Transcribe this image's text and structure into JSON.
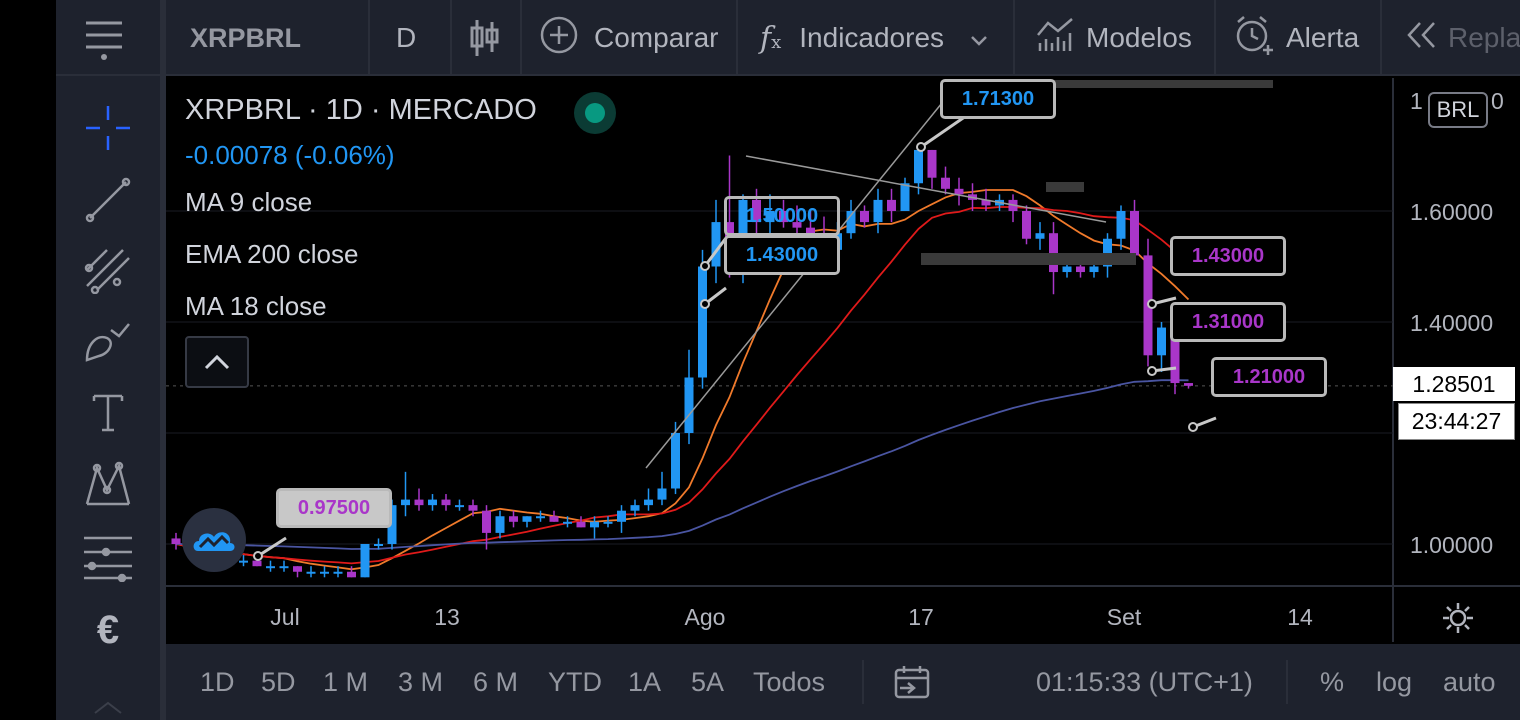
{
  "toolbar": {
    "symbol": "XRPBRL",
    "interval": "D",
    "compare_label": "Comparar",
    "indicators_label": "Indicadores",
    "models_label": "Modelos",
    "alert_label": "Alerta",
    "replay_label": "Repla"
  },
  "sidebar": {
    "tools": [
      "menu-icon",
      "crosshair-icon",
      "trend-line-icon",
      "fib-icon",
      "brush-icon",
      "text-icon",
      "pattern-icon",
      "measure-icon",
      "euro-icon"
    ]
  },
  "legend": {
    "title": "XRPBRL · 1D · MERCADO",
    "change": "-0.00078 (-0.06%)",
    "indicators": [
      "MA 9 close",
      "EMA 200 close",
      "MA 18 close"
    ]
  },
  "price_axis": {
    "currency": "BRL",
    "labels": [
      "1.60000",
      "1.40000",
      "1.00000"
    ],
    "partial_top": "1",
    "partial_top_end": "0",
    "current_price": "1.28501",
    "countdown": "23:44:27"
  },
  "time_axis": {
    "labels": [
      "Jul",
      "13",
      "Ago",
      "17",
      "Set",
      "14"
    ]
  },
  "callouts": [
    "1.71300",
    "1.50000",
    "1.43000",
    "0.97500",
    "1.43000",
    "1.31000",
    "1.21000"
  ],
  "bottombar": {
    "ranges": [
      "1D",
      "5D",
      "1 M",
      "3 M",
      "6 M",
      "YTD",
      "1A",
      "5A",
      "Todos"
    ],
    "clock": "01:15:33 (UTC+1)",
    "percent": "%",
    "log": "log",
    "auto": "auto"
  },
  "colors": {
    "up": "#2196f3",
    "down": "#a936c9",
    "ma9": "#f07a2b",
    "ma18": "#e01a1a",
    "ema200": "#4a55a2",
    "background": "#000000",
    "panel": "#1e222d"
  },
  "chart_data": {
    "type": "candlestick",
    "y_range": [
      0.92,
      1.78
    ],
    "candles": [
      {
        "date": "Jun 23",
        "open": 1.01,
        "high": 1.02,
        "low": 0.99,
        "close": 1.0
      },
      {
        "date": "Jun 24",
        "open": 1.0,
        "high": 1.0,
        "low": 0.98,
        "close": 0.99
      },
      {
        "date": "Jun 25",
        "open": 0.99,
        "high": 1.0,
        "low": 0.97,
        "close": 0.98
      },
      {
        "date": "Jun 26",
        "open": 0.98,
        "high": 0.99,
        "low": 0.97,
        "close": 0.98
      },
      {
        "date": "Jun 27",
        "open": 0.98,
        "high": 0.98,
        "low": 0.96,
        "close": 0.97
      },
      {
        "date": "Jun 28",
        "open": 0.97,
        "high": 0.98,
        "low": 0.96,
        "close": 0.97
      },
      {
        "date": "Jun 29",
        "open": 0.97,
        "high": 0.97,
        "low": 0.96,
        "close": 0.96
      },
      {
        "date": "Jun 30",
        "open": 0.96,
        "high": 0.97,
        "low": 0.95,
        "close": 0.96
      },
      {
        "date": "Jul 1",
        "open": 0.96,
        "high": 0.97,
        "low": 0.95,
        "close": 0.96
      },
      {
        "date": "Jul 2",
        "open": 0.96,
        "high": 0.96,
        "low": 0.94,
        "close": 0.95
      },
      {
        "date": "Jul 3",
        "open": 0.95,
        "high": 0.96,
        "low": 0.94,
        "close": 0.95
      },
      {
        "date": "Jul 4",
        "open": 0.95,
        "high": 0.96,
        "low": 0.94,
        "close": 0.95
      },
      {
        "date": "Jul 5",
        "open": 0.95,
        "high": 0.96,
        "low": 0.94,
        "close": 0.95
      },
      {
        "date": "Jul 6",
        "open": 0.95,
        "high": 0.96,
        "low": 0.94,
        "close": 0.94
      },
      {
        "date": "Jul 7",
        "open": 0.94,
        "high": 1.0,
        "low": 0.94,
        "close": 1.0
      },
      {
        "date": "Jul 8",
        "open": 1.0,
        "high": 1.01,
        "low": 0.99,
        "close": 1.0
      },
      {
        "date": "Jul 9",
        "open": 1.0,
        "high": 1.08,
        "low": 0.99,
        "close": 1.07
      },
      {
        "date": "Jul 10",
        "open": 1.07,
        "high": 1.13,
        "low": 1.05,
        "close": 1.08
      },
      {
        "date": "Jul 11",
        "open": 1.08,
        "high": 1.1,
        "low": 1.06,
        "close": 1.07
      },
      {
        "date": "Jul 12",
        "open": 1.07,
        "high": 1.09,
        "low": 1.06,
        "close": 1.08
      },
      {
        "date": "Jul 13",
        "open": 1.08,
        "high": 1.09,
        "low": 1.06,
        "close": 1.07
      },
      {
        "date": "Jul 14",
        "open": 1.07,
        "high": 1.08,
        "low": 1.06,
        "close": 1.07
      },
      {
        "date": "Jul 15",
        "open": 1.07,
        "high": 1.08,
        "low": 1.05,
        "close": 1.06
      },
      {
        "date": "Jul 16",
        "open": 1.06,
        "high": 1.07,
        "low": 0.99,
        "close": 1.02
      },
      {
        "date": "Jul 17",
        "open": 1.02,
        "high": 1.06,
        "low": 1.01,
        "close": 1.05
      },
      {
        "date": "Jul 18",
        "open": 1.05,
        "high": 1.06,
        "low": 1.03,
        "close": 1.04
      },
      {
        "date": "Jul 19",
        "open": 1.04,
        "high": 1.05,
        "low": 1.03,
        "close": 1.05
      },
      {
        "date": "Jul 20",
        "open": 1.05,
        "high": 1.06,
        "low": 1.04,
        "close": 1.05
      },
      {
        "date": "Jul 21",
        "open": 1.05,
        "high": 1.06,
        "low": 1.04,
        "close": 1.04
      },
      {
        "date": "Jul 22",
        "open": 1.04,
        "high": 1.05,
        "low": 1.03,
        "close": 1.04
      },
      {
        "date": "Jul 23",
        "open": 1.04,
        "high": 1.05,
        "low": 1.03,
        "close": 1.03
      },
      {
        "date": "Jul 24",
        "open": 1.03,
        "high": 1.05,
        "low": 1.01,
        "close": 1.04
      },
      {
        "date": "Jul 25",
        "open": 1.04,
        "high": 1.05,
        "low": 1.03,
        "close": 1.04
      },
      {
        "date": "Jul 26",
        "open": 1.04,
        "high": 1.07,
        "low": 1.02,
        "close": 1.06
      },
      {
        "date": "Jul 27",
        "open": 1.06,
        "high": 1.08,
        "low": 1.05,
        "close": 1.07
      },
      {
        "date": "Jul 28",
        "open": 1.07,
        "high": 1.1,
        "low": 1.06,
        "close": 1.08
      },
      {
        "date": "Jul 29",
        "open": 1.08,
        "high": 1.13,
        "low": 1.07,
        "close": 1.1
      },
      {
        "date": "Jul 30",
        "open": 1.1,
        "high": 1.22,
        "low": 1.09,
        "close": 1.2
      },
      {
        "date": "Jul 31",
        "open": 1.2,
        "high": 1.35,
        "low": 1.18,
        "close": 1.3
      },
      {
        "date": "Aug 1",
        "open": 1.3,
        "high": 1.53,
        "low": 1.28,
        "close": 1.5
      },
      {
        "date": "Aug 2",
        "open": 1.5,
        "high": 1.62,
        "low": 1.47,
        "close": 1.58
      },
      {
        "date": "Aug 3",
        "open": 1.58,
        "high": 1.7,
        "low": 1.48,
        "close": 1.49
      },
      {
        "date": "Aug 4",
        "open": 1.49,
        "high": 1.63,
        "low": 1.47,
        "close": 1.62
      },
      {
        "date": "Aug 5",
        "open": 1.62,
        "high": 1.64,
        "low": 1.55,
        "close": 1.58
      },
      {
        "date": "Aug 6",
        "open": 1.58,
        "high": 1.63,
        "low": 1.56,
        "close": 1.6
      },
      {
        "date": "Aug 7",
        "open": 1.6,
        "high": 1.62,
        "low": 1.57,
        "close": 1.58
      },
      {
        "date": "Aug 8",
        "open": 1.58,
        "high": 1.61,
        "low": 1.54,
        "close": 1.57
      },
      {
        "date": "Aug 9",
        "open": 1.57,
        "high": 1.6,
        "low": 1.53,
        "close": 1.55
      },
      {
        "date": "Aug 10",
        "open": 1.55,
        "high": 1.59,
        "low": 1.51,
        "close": 1.53
      },
      {
        "date": "Aug 11",
        "open": 1.53,
        "high": 1.58,
        "low": 1.52,
        "close": 1.56
      },
      {
        "date": "Aug 12",
        "open": 1.56,
        "high": 1.62,
        "low": 1.55,
        "close": 1.6
      },
      {
        "date": "Aug 13",
        "open": 1.6,
        "high": 1.61,
        "low": 1.57,
        "close": 1.58
      },
      {
        "date": "Aug 14",
        "open": 1.58,
        "high": 1.64,
        "low": 1.56,
        "close": 1.62
      },
      {
        "date": "Aug 15",
        "open": 1.62,
        "high": 1.64,
        "low": 1.58,
        "close": 1.6
      },
      {
        "date": "Aug 16",
        "open": 1.6,
        "high": 1.66,
        "low": 1.6,
        "close": 1.65
      },
      {
        "date": "Aug 17",
        "open": 1.65,
        "high": 1.71,
        "low": 1.63,
        "close": 1.71
      },
      {
        "date": "Aug 18",
        "open": 1.71,
        "high": 1.71,
        "low": 1.64,
        "close": 1.66
      },
      {
        "date": "Aug 19",
        "open": 1.66,
        "high": 1.68,
        "low": 1.63,
        "close": 1.64
      },
      {
        "date": "Aug 20",
        "open": 1.64,
        "high": 1.66,
        "low": 1.61,
        "close": 1.63
      },
      {
        "date": "Aug 21",
        "open": 1.63,
        "high": 1.65,
        "low": 1.6,
        "close": 1.62
      },
      {
        "date": "Aug 22",
        "open": 1.62,
        "high": 1.64,
        "low": 1.6,
        "close": 1.61
      },
      {
        "date": "Aug 23",
        "open": 1.61,
        "high": 1.63,
        "low": 1.6,
        "close": 1.62
      },
      {
        "date": "Aug 24",
        "open": 1.62,
        "high": 1.63,
        "low": 1.58,
        "close": 1.6
      },
      {
        "date": "Aug 25",
        "open": 1.6,
        "high": 1.61,
        "low": 1.54,
        "close": 1.55
      },
      {
        "date": "Aug 26",
        "open": 1.55,
        "high": 1.58,
        "low": 1.53,
        "close": 1.56
      },
      {
        "date": "Aug 27",
        "open": 1.56,
        "high": 1.58,
        "low": 1.45,
        "close": 1.49
      },
      {
        "date": "Aug 28",
        "open": 1.49,
        "high": 1.52,
        "low": 1.48,
        "close": 1.5
      },
      {
        "date": "Aug 29",
        "open": 1.5,
        "high": 1.51,
        "low": 1.48,
        "close": 1.49
      },
      {
        "date": "Aug 30",
        "open": 1.49,
        "high": 1.52,
        "low": 1.48,
        "close": 1.5
      },
      {
        "date": "Aug 31",
        "open": 1.5,
        "high": 1.56,
        "low": 1.48,
        "close": 1.55
      },
      {
        "date": "Sep 1",
        "open": 1.55,
        "high": 1.61,
        "low": 1.53,
        "close": 1.6
      },
      {
        "date": "Sep 2",
        "open": 1.6,
        "high": 1.62,
        "low": 1.52,
        "close": 1.52
      },
      {
        "date": "Sep 3",
        "open": 1.52,
        "high": 1.55,
        "low": 1.32,
        "close": 1.34
      },
      {
        "date": "Sep 4",
        "open": 1.34,
        "high": 1.4,
        "low": 1.31,
        "close": 1.39
      },
      {
        "date": "Sep 5",
        "open": 1.39,
        "high": 1.41,
        "low": 1.27,
        "close": 1.29
      },
      {
        "date": "Sep 6",
        "open": 1.29,
        "high": 1.29,
        "low": 1.28,
        "close": 1.285
      }
    ],
    "annotations": [
      "1.71300",
      "1.50000",
      "1.43000",
      "0.97500",
      "1.43000",
      "1.31000",
      "1.21000"
    ]
  }
}
